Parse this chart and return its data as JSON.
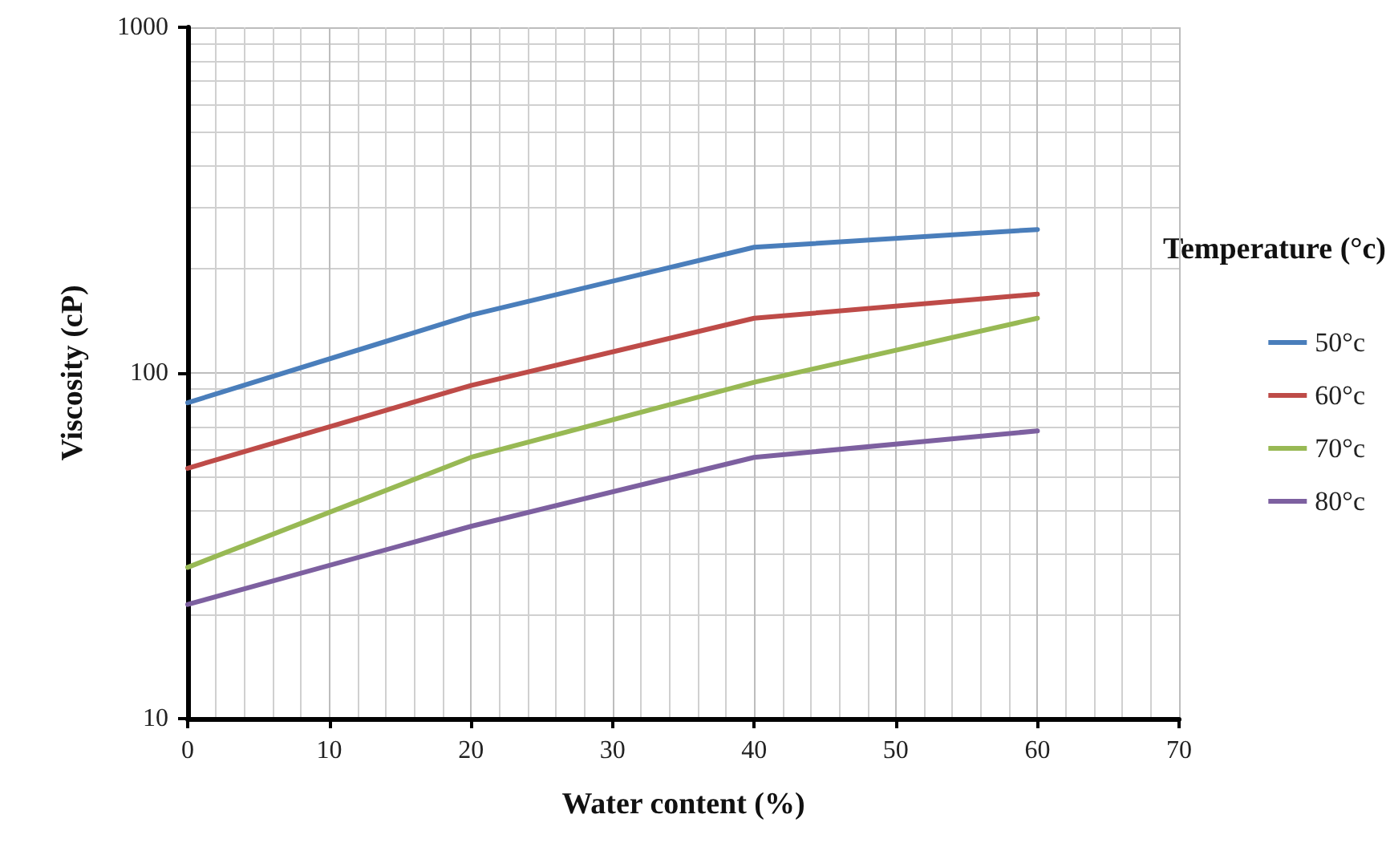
{
  "chart_data": {
    "type": "line",
    "xlabel": "Water content (%)",
    "ylabel": "Viscosity (cP)",
    "legend_title": "Temperature (°c)",
    "x": [
      0,
      20,
      40,
      60
    ],
    "series": [
      {
        "name": "50°c",
        "color": "#4a7ebb",
        "values": [
          82,
          147,
          231,
          260
        ]
      },
      {
        "name": "60°c",
        "color": "#be4b48",
        "values": [
          53,
          92,
          144,
          169
        ]
      },
      {
        "name": "70°c",
        "color": "#98b954",
        "values": [
          27.4,
          57,
          94,
          144
        ]
      },
      {
        "name": "80°c",
        "color": "#7d60a0",
        "values": [
          21.4,
          36,
          57,
          68
        ]
      }
    ],
    "xlim": [
      0,
      70
    ],
    "xticks": [
      0,
      10,
      20,
      30,
      40,
      50,
      60,
      70
    ],
    "ylim": [
      10,
      1000
    ],
    "yticks": [
      10,
      100,
      1000
    ],
    "log": "y",
    "grid": true,
    "legend": "right",
    "marker": "none",
    "line_style": "solid"
  }
}
